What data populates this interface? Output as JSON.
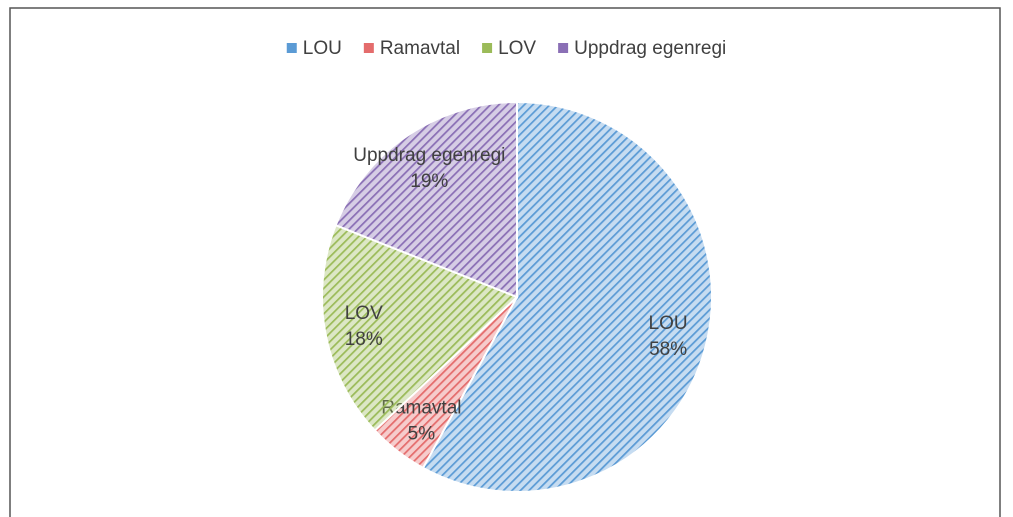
{
  "chart_data": {
    "type": "pie",
    "categories": [
      "LOU",
      "Ramavtal",
      "LOV",
      "Uppdrag egenregi"
    ],
    "values": [
      58,
      5,
      18,
      19
    ],
    "value_labels": [
      "58%",
      "5%",
      "18%",
      "19%"
    ],
    "colors": [
      "#5b9bd5",
      "#e46c6c",
      "#9bbb59",
      "#8a6fb5"
    ],
    "legend": "top"
  }
}
